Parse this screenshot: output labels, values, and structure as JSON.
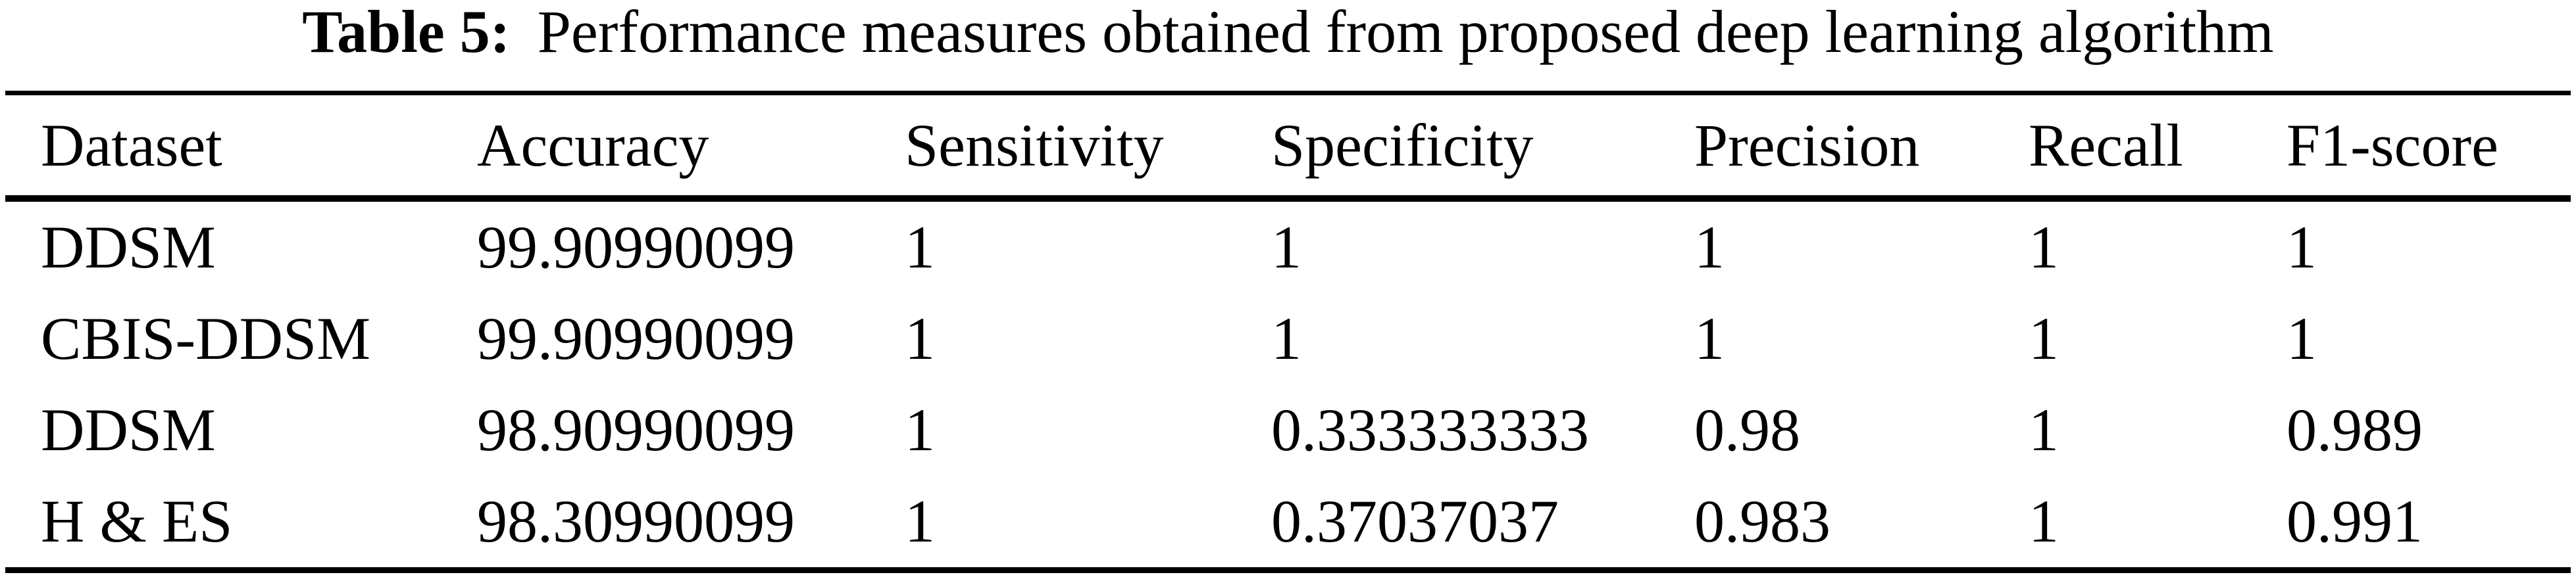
{
  "colors": {
    "text": "#000000",
    "background": "#ffffff",
    "rule": "#000000"
  },
  "caption": {
    "label": "Table 5:",
    "text": "Performance measures obtained from proposed deep learning algorithm"
  },
  "table": {
    "columns": [
      "Dataset",
      "Accuracy",
      "Sensitivity",
      "Specificity",
      "Precision",
      "Recall",
      "F1-score"
    ],
    "rows": [
      [
        "DDSM",
        "99.90990099",
        "1",
        "1",
        "1",
        "1",
        "1"
      ],
      [
        "CBIS-DDSM",
        "99.90990099",
        "1",
        "1",
        "1",
        "1",
        "1"
      ],
      [
        "DDSM",
        "98.90990099",
        "1",
        "0.333333333",
        "0.98",
        "1",
        "0.989"
      ],
      [
        "H & ES",
        "98.30990099",
        "1",
        "0.37037037",
        "0.983",
        "1",
        "0.991"
      ]
    ]
  },
  "chart_data": {
    "type": "table",
    "title": "Table 5: Performance measures obtained from proposed deep learning algorithm",
    "columns": [
      "Dataset",
      "Accuracy",
      "Sensitivity",
      "Specificity",
      "Precision",
      "Recall",
      "F1-score"
    ],
    "rows": [
      [
        "DDSM",
        "99.90990099",
        "1",
        "1",
        "1",
        "1",
        "1"
      ],
      [
        "CBIS-DDSM",
        "99.90990099",
        "1",
        "1",
        "1",
        "1",
        "1"
      ],
      [
        "DDSM",
        "98.90990099",
        "1",
        "0.333333333",
        "0.98",
        "1",
        "0.989"
      ],
      [
        "H & ES",
        "98.30990099",
        "1",
        "0.37037037",
        "0.983",
        "1",
        "0.991"
      ]
    ]
  }
}
